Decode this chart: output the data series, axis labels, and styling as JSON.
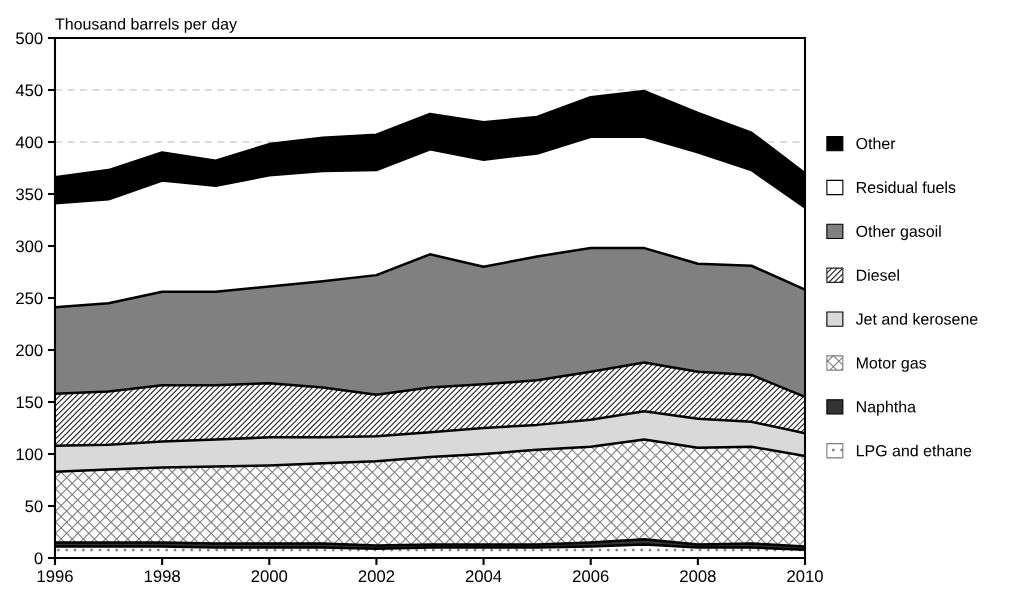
{
  "chart_data": {
    "type": "area",
    "stacked": true,
    "ylabel": "Thousand barrels per day",
    "x": [
      1996,
      1997,
      1998,
      1999,
      2000,
      2001,
      2002,
      2003,
      2004,
      2005,
      2006,
      2007,
      2008,
      2009,
      2010
    ],
    "series": [
      {
        "name": "LPG and ethane",
        "color": "#808080",
        "values": [
          11,
          11,
          11,
          10,
          10,
          10,
          9,
          10,
          10,
          10,
          11,
          13,
          10,
          10,
          8
        ]
      },
      {
        "name": "Naphtha",
        "color": "#333333",
        "values": [
          4,
          4,
          4,
          4,
          4,
          4,
          3,
          3,
          3,
          3,
          4,
          5,
          3,
          4,
          3
        ]
      },
      {
        "name": "Motor gas",
        "color": "#808080",
        "values": [
          68,
          70,
          72,
          74,
          75,
          77,
          81,
          84,
          87,
          91,
          92,
          96,
          93,
          93,
          87
        ]
      },
      {
        "name": "Jet and kerosene",
        "color": "#d9d9d9",
        "values": [
          25,
          24,
          25,
          26,
          27,
          25,
          24,
          24,
          25,
          24,
          26,
          27,
          28,
          24,
          22
        ]
      },
      {
        "name": "Diesel",
        "color": "#222222",
        "values": [
          50,
          51,
          54,
          52,
          52,
          48,
          40,
          43,
          42,
          43,
          46,
          47,
          45,
          45,
          35
        ]
      },
      {
        "name": "Other gasoil",
        "color": "#808080",
        "values": [
          83,
          85,
          90,
          90,
          93,
          102,
          115,
          128,
          113,
          119,
          119,
          110,
          104,
          105,
          103
        ]
      },
      {
        "name": "Residual fuels",
        "color": "#ffffff",
        "values": [
          100,
          100,
          107,
          102,
          107,
          106,
          101,
          101,
          103,
          99,
          107,
          107,
          107,
          92,
          79
        ]
      },
      {
        "name": "Other",
        "color": "#000000",
        "values": [
          25,
          28,
          27,
          24,
          30,
          32,
          34,
          34,
          36,
          35,
          38,
          44,
          38,
          36,
          33
        ]
      }
    ],
    "xlim": [
      1996,
      2010
    ],
    "xticks": [
      1996,
      1998,
      2000,
      2002,
      2004,
      2006,
      2008,
      2010
    ],
    "ylim": [
      0,
      500
    ],
    "yticks": [
      0,
      50,
      100,
      150,
      200,
      250,
      300,
      350,
      400,
      450,
      500
    ],
    "grid": "y",
    "legend": "right"
  }
}
